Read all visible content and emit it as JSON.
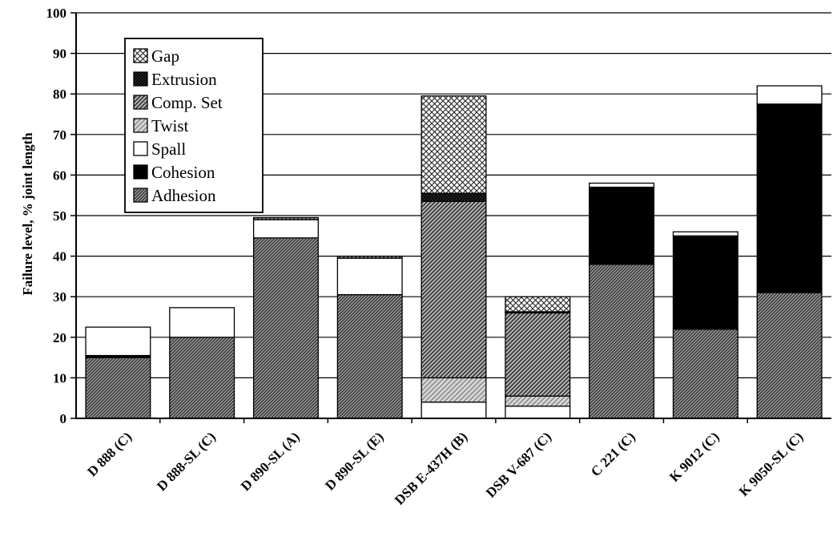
{
  "chart_data": {
    "type": "bar",
    "stacked": true,
    "title": "",
    "xlabel": "",
    "ylabel": "Failure level, % joint length",
    "ylim": [
      0,
      100
    ],
    "yticks": [
      0,
      10,
      20,
      30,
      40,
      50,
      60,
      70,
      80,
      90,
      100
    ],
    "grid": true,
    "legend_position": "top-left",
    "categories": [
      "D 888 (C)",
      "D 888-SL (C)",
      "D 890-SL (A)",
      "D 890-SL (E)",
      "DSB E-437H (B)",
      "DSB V-687 (C)",
      "C 221 (C)",
      "K 9012 (C)",
      "K 9050-SL (C)"
    ],
    "series": [
      {
        "name": "Adhesion",
        "pattern": "diag-dense",
        "values": [
          15,
          20,
          44.5,
          30.5,
          0,
          0,
          38,
          22,
          31
        ]
      },
      {
        "name": "Cohesion",
        "pattern": "solid-black",
        "values": [
          0.5,
          0,
          0,
          0,
          0,
          0,
          19,
          23,
          46.5
        ]
      },
      {
        "name": "Spall",
        "pattern": "white",
        "values": [
          7,
          7.3,
          4.5,
          9,
          4,
          3,
          1,
          1,
          4.5
        ]
      },
      {
        "name": "Twist",
        "pattern": "diag-light",
        "values": [
          0,
          0,
          0,
          0,
          6,
          2.5,
          0,
          0,
          0
        ]
      },
      {
        "name": "Comp. Set",
        "pattern": "diag-medium",
        "values": [
          0,
          0,
          0.5,
          0.5,
          43.5,
          20.5,
          0,
          0,
          0
        ]
      },
      {
        "name": "Extrusion",
        "pattern": "dark-check",
        "values": [
          0,
          0,
          0,
          0,
          2,
          0.3,
          0,
          0,
          0
        ]
      },
      {
        "name": "Gap",
        "pattern": "crosshatch",
        "values": [
          0,
          0,
          0,
          0,
          24,
          3.7,
          0,
          0,
          0
        ]
      }
    ],
    "legend_order": [
      "Gap",
      "Extrusion",
      "Comp. Set",
      "Twist",
      "Spall",
      "Cohesion",
      "Adhesion"
    ]
  }
}
